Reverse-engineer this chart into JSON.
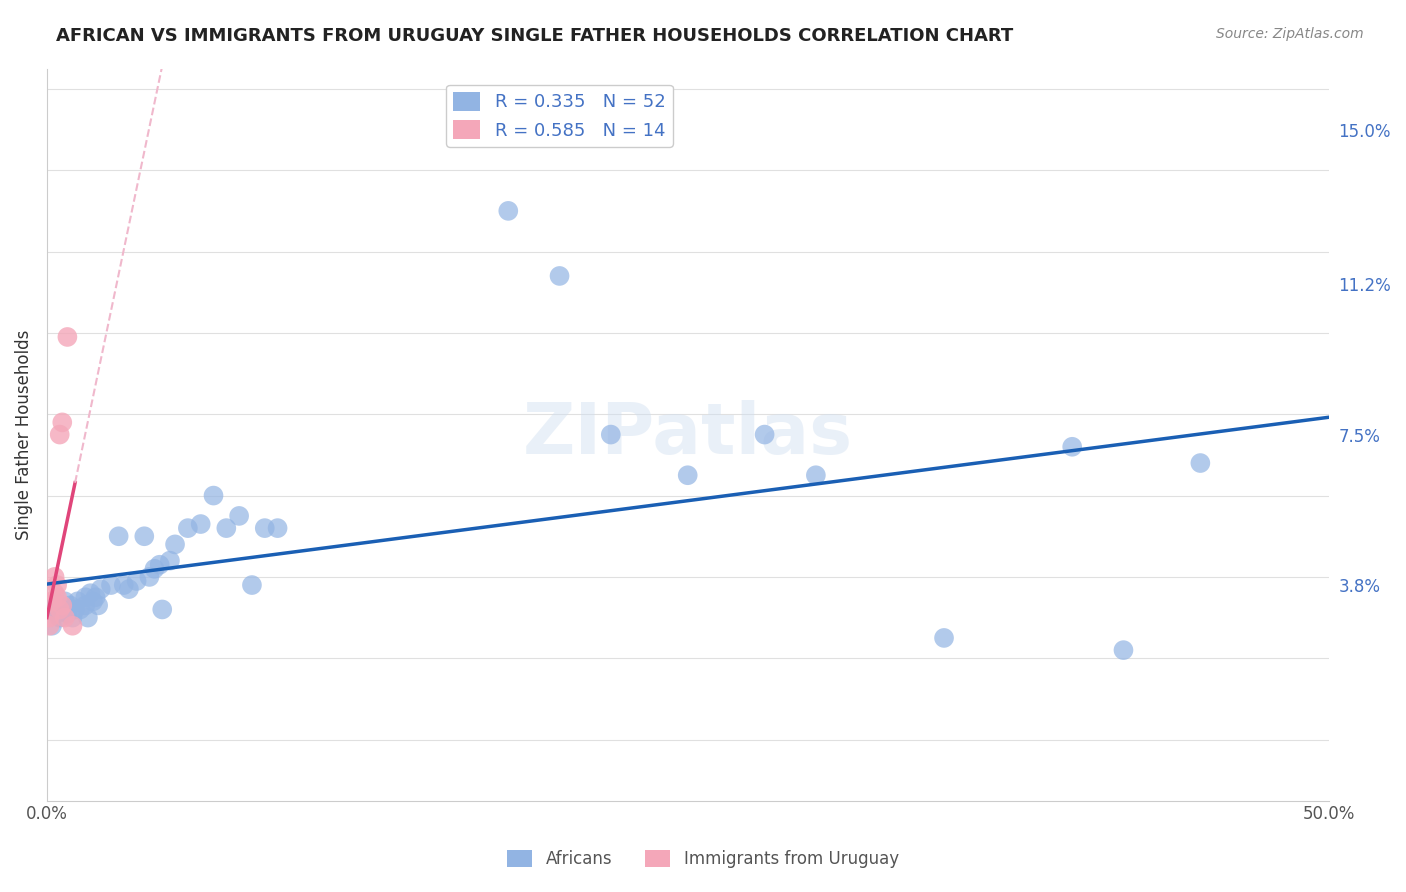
{
  "title": "AFRICAN VS IMMIGRANTS FROM URUGUAY SINGLE FATHER HOUSEHOLDS CORRELATION CHART",
  "source": "Source: ZipAtlas.com",
  "ylabel": "Single Father Households",
  "ytick_labels": [
    "3.8%",
    "7.5%",
    "11.2%",
    "15.0%"
  ],
  "ytick_values": [
    0.038,
    0.075,
    0.112,
    0.15
  ],
  "xlim": [
    0.0,
    0.5
  ],
  "ylim": [
    -0.015,
    0.165
  ],
  "africans_R": 0.335,
  "africans_N": 52,
  "uruguay_R": 0.585,
  "uruguay_N": 14,
  "africans_color": "#92b4e3",
  "uruguay_color": "#f4a7b9",
  "trendline_african_color": "#1a5fb4",
  "trendline_uruguay_color": "#e0457a",
  "trendline_uruguay_dashed_color": "#f0b8cc",
  "africans_x": [
    0.001,
    0.002,
    0.003,
    0.004,
    0.005,
    0.005,
    0.006,
    0.007,
    0.008,
    0.009,
    0.01,
    0.011,
    0.012,
    0.013,
    0.015,
    0.015,
    0.016,
    0.017,
    0.018,
    0.019,
    0.02,
    0.021,
    0.025,
    0.028,
    0.03,
    0.032,
    0.035,
    0.038,
    0.04,
    0.042,
    0.044,
    0.045,
    0.048,
    0.05,
    0.055,
    0.06,
    0.065,
    0.07,
    0.075,
    0.08,
    0.085,
    0.09,
    0.18,
    0.2,
    0.22,
    0.25,
    0.28,
    0.3,
    0.35,
    0.4,
    0.42,
    0.45
  ],
  "africans_y": [
    0.032,
    0.028,
    0.033,
    0.031,
    0.03,
    0.032,
    0.032,
    0.034,
    0.031,
    0.033,
    0.03,
    0.032,
    0.034,
    0.032,
    0.035,
    0.033,
    0.03,
    0.036,
    0.034,
    0.035,
    0.033,
    0.037,
    0.038,
    0.05,
    0.038,
    0.037,
    0.039,
    0.05,
    0.04,
    0.042,
    0.043,
    0.032,
    0.044,
    0.048,
    0.052,
    0.053,
    0.06,
    0.052,
    0.055,
    0.038,
    0.052,
    0.052,
    0.13,
    0.114,
    0.075,
    0.065,
    0.075,
    0.065,
    0.025,
    0.072,
    0.022,
    0.068
  ],
  "uruguay_x": [
    0.001,
    0.001,
    0.002,
    0.003,
    0.003,
    0.004,
    0.004,
    0.005,
    0.005,
    0.006,
    0.006,
    0.007,
    0.008,
    0.01
  ],
  "uruguay_y": [
    0.03,
    0.028,
    0.034,
    0.036,
    0.04,
    0.035,
    0.038,
    0.032,
    0.075,
    0.078,
    0.033,
    0.03,
    0.099,
    0.028
  ]
}
